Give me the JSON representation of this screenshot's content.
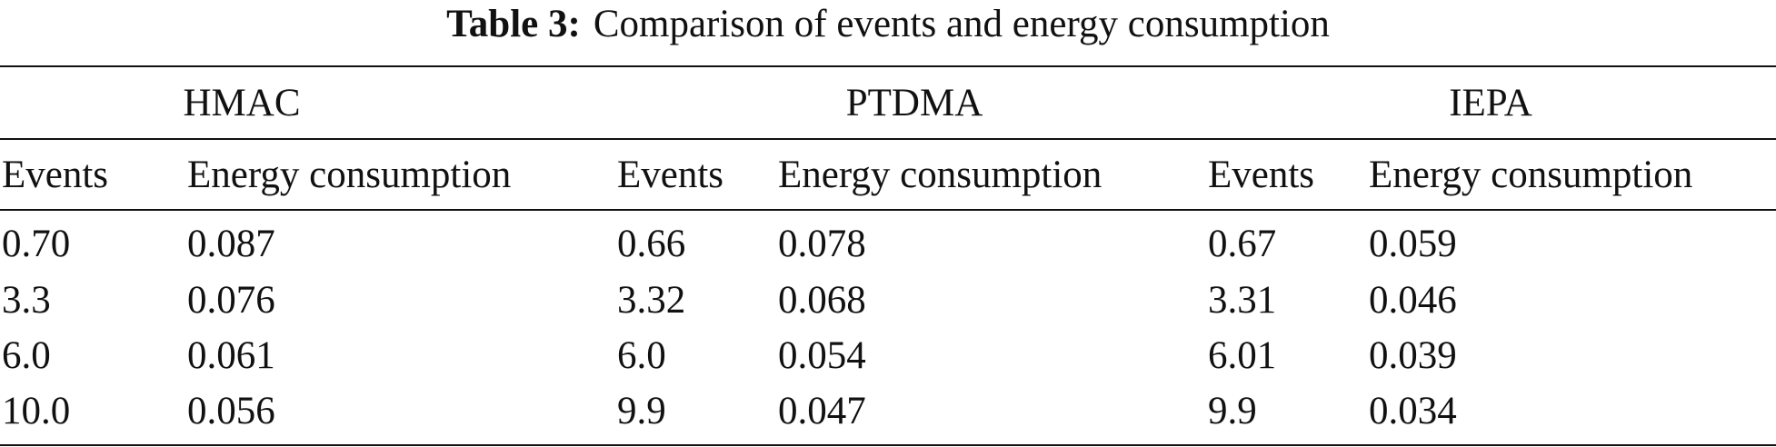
{
  "caption": {
    "label": "Table 3:",
    "title": "Comparison of events and energy consumption"
  },
  "groups": [
    "HMAC",
    "PTDMA",
    "IEPA"
  ],
  "column_headers": [
    "Events",
    "Energy consumption",
    "Events",
    "Energy consumption",
    "Events",
    "Energy consumption"
  ],
  "rows": [
    [
      "0.70",
      "0.087",
      "0.66",
      "0.078",
      "0.67",
      "0.059"
    ],
    [
      "3.3",
      "0.076",
      "3.32",
      "0.068",
      "3.31",
      "0.046"
    ],
    [
      "6.0",
      "0.061",
      "6.0",
      "0.054",
      "6.01",
      "0.039"
    ],
    [
      "10.0",
      "0.056",
      "9.9",
      "0.047",
      "9.9",
      "0.034"
    ]
  ]
}
